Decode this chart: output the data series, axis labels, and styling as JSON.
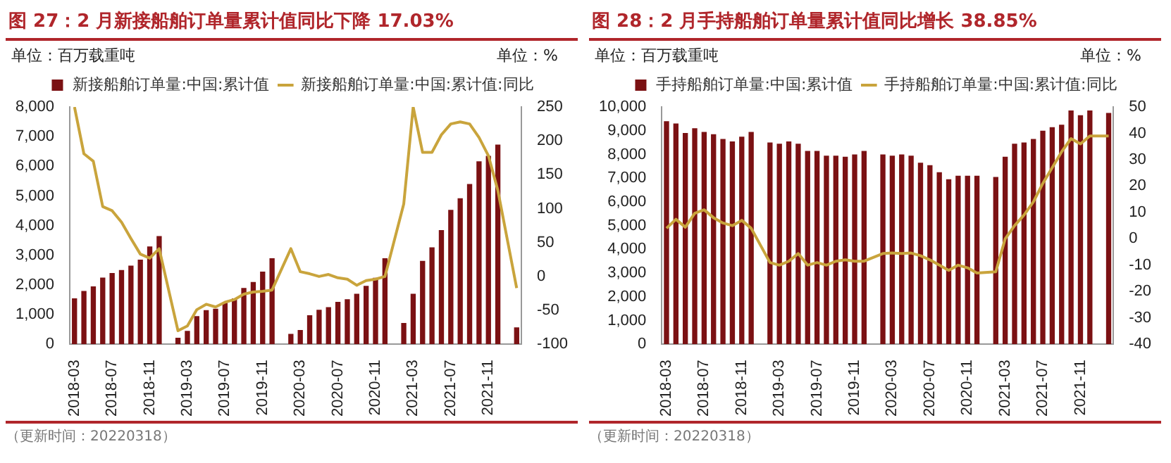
{
  "chart_data": [
    {
      "type": "bar",
      "title": "图 27：2 月新接船舶订单量累计值同比下降 17.03%",
      "ylabel": "单位：百万载重吨",
      "y2label": "单位：%",
      "annotations": [
        "（更新时间：20220318）"
      ],
      "categories": [
        "2018-03",
        null,
        null,
        null,
        "2018-07",
        null,
        null,
        null,
        "2018-11",
        null,
        null,
        null,
        "2019-03",
        null,
        null,
        null,
        "2019-07",
        null,
        null,
        null,
        "2019-11",
        null,
        null,
        null,
        "2020-03",
        null,
        null,
        null,
        "2020-07",
        null,
        null,
        null,
        "2020-11",
        null,
        null,
        null,
        "2021-03",
        null,
        null,
        null,
        "2021-07",
        null,
        null,
        null,
        "2021-11",
        null,
        null,
        null
      ],
      "series": [
        {
          "name": "新接船舶订单量:中国:累计值",
          "color": "#7b1113",
          "values": [
            1550,
            1800,
            1950,
            2250,
            2400,
            2500,
            2650,
            2850,
            3300,
            3650,
            null,
            220,
            450,
            950,
            1150,
            1200,
            1400,
            1550,
            1900,
            2100,
            2450,
            2900,
            null,
            350,
            480,
            980,
            1160,
            1250,
            1430,
            1520,
            1700,
            1970,
            2240,
            2900,
            null,
            720,
            1700,
            2810,
            3270,
            3850,
            4530,
            4920,
            5400,
            6170,
            6350,
            6730,
            null,
            570
          ]
        },
        {
          "name": "新接船舶订单量:中国:累计值:同比",
          "type": "line",
          "axis": "y2",
          "color": "#c9a43c",
          "values": [
            250,
            181,
            170,
            103,
            97,
            80,
            56,
            33,
            27,
            41,
            null,
            -80,
            -73,
            -49,
            -41,
            -45,
            -38,
            -34,
            -26,
            -23,
            -22,
            -20,
            null,
            41,
            7,
            4,
            0,
            3,
            -2,
            -4,
            -13,
            -6,
            -4,
            0,
            null,
            107,
            250,
            183,
            183,
            209,
            225,
            228,
            225,
            205,
            178,
            127,
            null,
            -17
          ]
        }
      ],
      "ylim": [
        0,
        8000
      ],
      "yticks": [
        0,
        {
          "value": 1000,
          "label": "1,000"
        },
        {
          "value": 2000,
          "label": "2,000"
        },
        {
          "value": 3000,
          "label": "3,000"
        },
        {
          "value": 4000,
          "label": "4,000"
        },
        {
          "value": 5000,
          "label": "5,000"
        },
        {
          "value": 6000,
          "label": "6,000"
        },
        {
          "value": 7000,
          "label": "7,000"
        },
        {
          "value": 8000,
          "label": "8,000"
        }
      ],
      "y2lim": [
        -100,
        250
      ],
      "y2ticks": [
        -100,
        -50,
        0,
        50,
        100,
        150,
        200,
        250
      ],
      "grid": false,
      "legend": "top"
    },
    {
      "type": "bar",
      "title": "图 28：2 月手持船舶订单量累计值同比增长 38.85%",
      "ylabel": "单位：百万载重吨",
      "y2label": "单位：%",
      "annotations": [
        "（更新时间：20220318）"
      ],
      "categories": [
        "2018-03",
        null,
        null,
        null,
        "2018-07",
        null,
        null,
        null,
        "2018-11",
        null,
        null,
        null,
        "2019-03",
        null,
        null,
        null,
        "2019-07",
        null,
        null,
        null,
        "2019-11",
        null,
        null,
        null,
        "2020-03",
        null,
        null,
        null,
        "2020-07",
        null,
        null,
        null,
        "2020-11",
        null,
        null,
        null,
        "2021-03",
        null,
        null,
        null,
        "2021-07",
        null,
        null,
        null,
        "2021-11",
        null,
        null,
        null
      ],
      "series": [
        {
          "name": "手持船舶订单量:中国:累计值",
          "color": "#7b1113",
          "values": [
            9400,
            9300,
            8900,
            9100,
            8950,
            8850,
            8650,
            8550,
            8750,
            8950,
            null,
            8500,
            8450,
            8550,
            8450,
            8150,
            8150,
            7950,
            7950,
            7900,
            8000,
            8150,
            null,
            8000,
            7950,
            8000,
            7950,
            7650,
            7550,
            7250,
            6950,
            7100,
            7100,
            7100,
            null,
            7050,
            7900,
            8450,
            8500,
            8650,
            9000,
            9150,
            9250,
            9850,
            9650,
            9850,
            null,
            9750
          ]
        },
        {
          "name": "手持船舶订单量:中国:累计值:同比",
          "type": "line",
          "axis": "y2",
          "color": "#c9a43c",
          "values": [
            4,
            7.4,
            4.4,
            9.7,
            11,
            8,
            6,
            5,
            7,
            4,
            null,
            -9,
            -10,
            -8.5,
            -5.6,
            -10,
            -9,
            -10,
            -8.5,
            -8,
            -8.5,
            -8.5,
            null,
            -5.6,
            -5.4,
            -5.6,
            -5.4,
            -6.4,
            -8,
            -10,
            -12,
            -10,
            -11,
            -13,
            null,
            -12.5,
            0,
            5,
            9,
            14,
            21,
            27,
            33,
            38,
            36,
            39,
            null,
            39
          ]
        }
      ],
      "ylim": [
        0,
        10000
      ],
      "yticks": [
        0,
        {
          "value": 1000,
          "label": "1,000"
        },
        {
          "value": 2000,
          "label": "2,000"
        },
        {
          "value": 3000,
          "label": "3,000"
        },
        {
          "value": 4000,
          "label": "4,000"
        },
        {
          "value": 5000,
          "label": "5,000"
        },
        {
          "value": 6000,
          "label": "6,000"
        },
        {
          "value": 7000,
          "label": "7,000"
        },
        {
          "value": 8000,
          "label": "8,000"
        },
        {
          "value": 9000,
          "label": "9,000"
        },
        {
          "value": 10000,
          "label": "10,000"
        }
      ],
      "y2lim": [
        -40,
        50
      ],
      "y2ticks": [
        -40,
        -30,
        -20,
        -10,
        0,
        10,
        20,
        30,
        40,
        50
      ],
      "grid": false,
      "legend": "top"
    }
  ]
}
